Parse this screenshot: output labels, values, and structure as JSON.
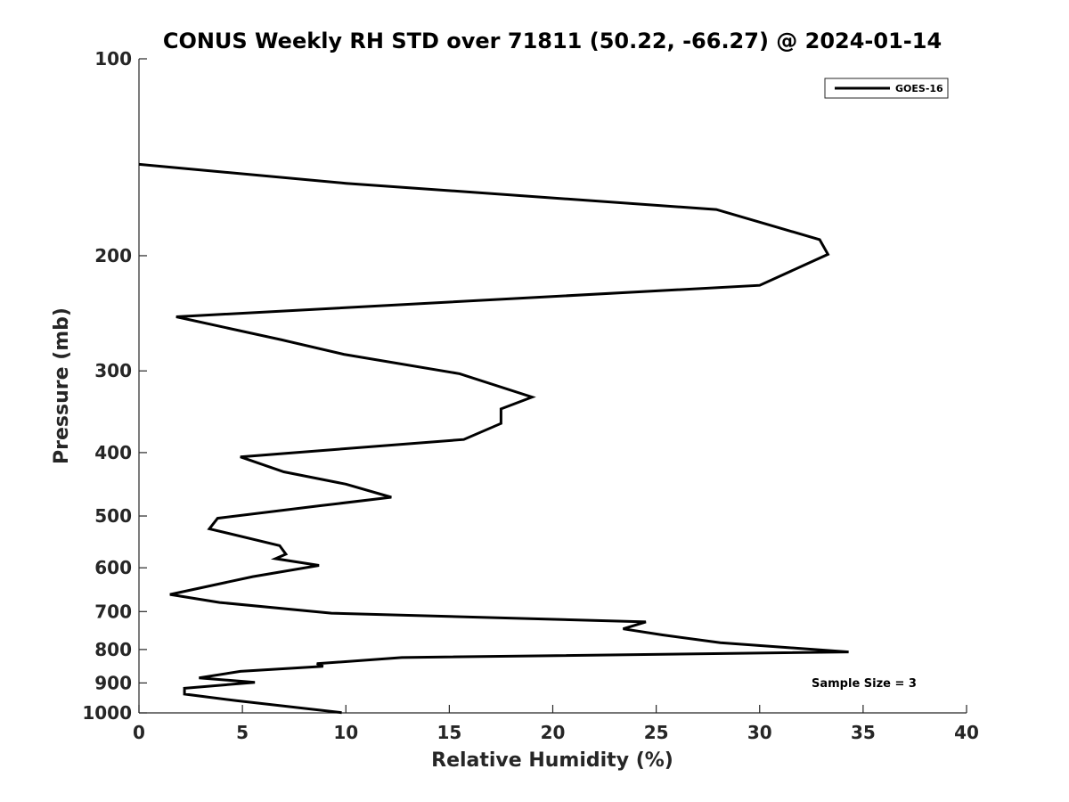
{
  "chart_data": {
    "type": "line",
    "title": "CONUS Weekly RH STD over 71811 (50.22, -66.27) @ 2024-01-14",
    "xlabel": "Relative Humidity (%)",
    "ylabel": "Pressure (mb)",
    "xlim": [
      0,
      40
    ],
    "ylim": [
      100,
      1000
    ],
    "y_scale": "log",
    "y_reversed": true,
    "grid": false,
    "legend_position": "top-right",
    "x_ticks": [
      "0",
      "5",
      "10",
      "15",
      "20",
      "25",
      "30",
      "35",
      "40"
    ],
    "y_ticks": [
      "100",
      "200",
      "300",
      "400",
      "500",
      "600",
      "700",
      "800",
      "900",
      "1000"
    ],
    "annotation": "Sample Size = 3",
    "series": [
      {
        "name": "GOES-16",
        "color": "#000000",
        "x": [
          0.0,
          10.0,
          27.9,
          32.9,
          33.3,
          30.0,
          1.8,
          6.9,
          9.9,
          15.5,
          19.0,
          17.5,
          17.5,
          15.7,
          4.9,
          7.0,
          10.0,
          12.2,
          8.8,
          3.8,
          3.4,
          6.8,
          7.1,
          6.6,
          8.7,
          5.5,
          1.5,
          3.9,
          9.3,
          24.5,
          23.4,
          25.3,
          28.1,
          34.3,
          12.7,
          8.6,
          8.9,
          4.9,
          2.9,
          5.6,
          2.2,
          2.2,
          4.7,
          9.8
        ],
        "y": [
          145,
          155,
          170,
          189,
          199,
          222,
          248,
          269,
          283,
          303,
          329,
          343,
          361,
          382,
          406,
          428,
          447,
          468,
          482,
          504,
          523,
          555,
          572,
          581,
          595,
          619,
          659,
          678,
          704,
          726,
          744,
          760,
          781,
          807,
          823,
          841,
          849,
          864,
          884,
          898,
          917,
          936,
          958,
          999
        ]
      }
    ]
  }
}
